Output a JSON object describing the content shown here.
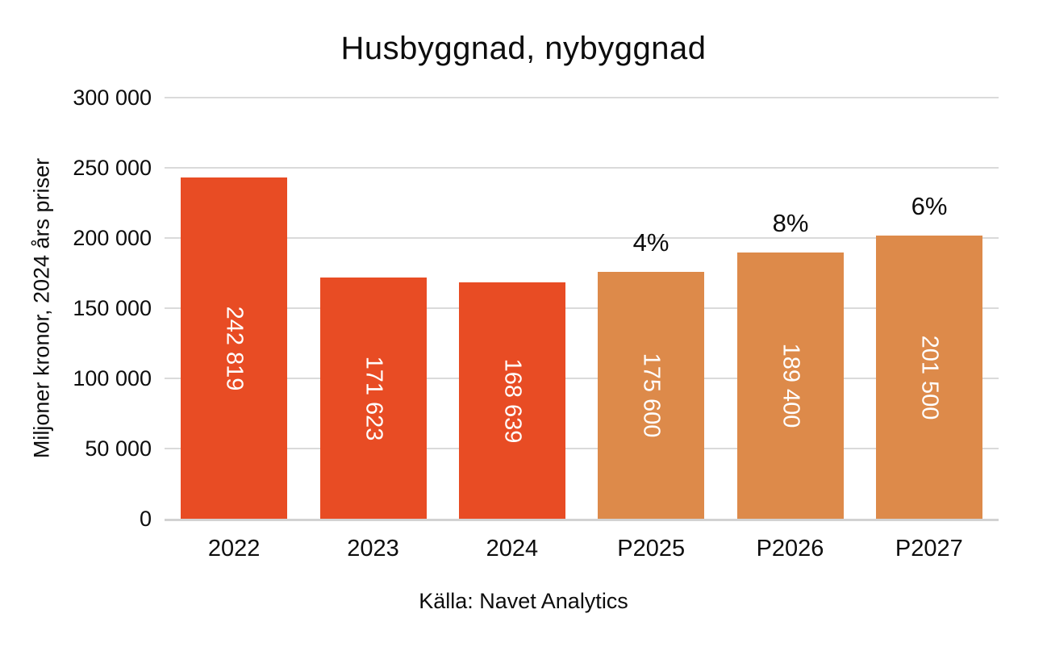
{
  "chart_data": {
    "type": "bar",
    "title": "Husbyggnad, nybyggnad",
    "ylabel": "Miljoner kronor, 2024 års priser",
    "xlabel": "",
    "source": "Källa: Navet Analytics",
    "categories": [
      "2022",
      "2023",
      "2024",
      "P2025",
      "P2026",
      "P2027"
    ],
    "values": [
      242819,
      171623,
      168639,
      175600,
      189400,
      201500
    ],
    "bar_labels": [
      "242 819",
      "171 623",
      "168 639",
      "175 600",
      "189 400",
      "201 500"
    ],
    "annotations": [
      "",
      "",
      "",
      "4%",
      "8%",
      "6%"
    ],
    "bar_colors": [
      "#e84c24",
      "#e84c24",
      "#e84c24",
      "#dd8a4a",
      "#dd8a4a",
      "#dd8a4a"
    ],
    "ylim": [
      0,
      300000
    ],
    "ytick_labels": [
      "300 000",
      "250 000",
      "200 000",
      "150 000",
      "100 000",
      "50 000",
      "0"
    ],
    "grid": true,
    "legend_position": "none",
    "colors": {
      "bar_actual": "#e84c24",
      "bar_forecast": "#dd8a4a",
      "gridline": "#dadada",
      "axis_line": "#d2d2d2",
      "value_label_text": "#ffffff",
      "text": "#0d0d0d",
      "background": "#ffffff"
    }
  }
}
